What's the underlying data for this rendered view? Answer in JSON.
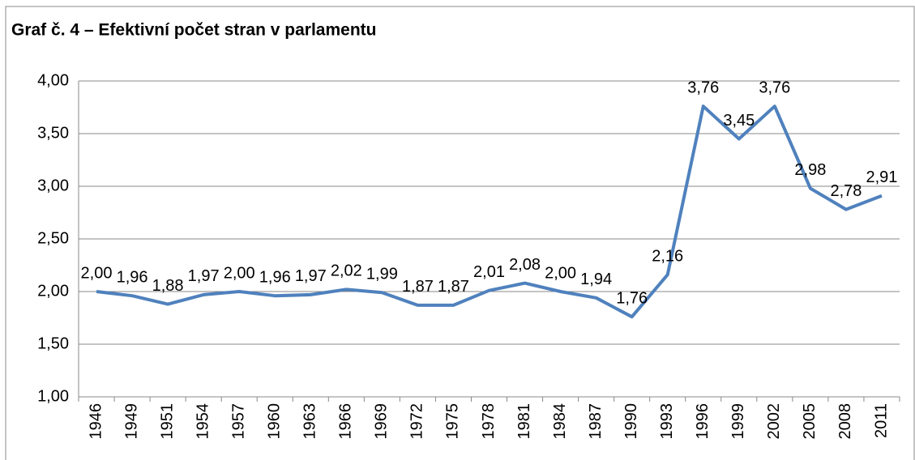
{
  "chart_data": {
    "type": "line",
    "title": "Graf č. 4 – Efektivní počet stran v parlamentu",
    "categories": [
      "1946",
      "1949",
      "1951",
      "1954",
      "1957",
      "1960",
      "1963",
      "1966",
      "1969",
      "1972",
      "1975",
      "1978",
      "1981",
      "1984",
      "1987",
      "1990",
      "1993",
      "1996",
      "1999",
      "2002",
      "2005",
      "2008",
      "2011"
    ],
    "values": [
      2.0,
      1.96,
      1.88,
      1.97,
      2.0,
      1.96,
      1.97,
      2.02,
      1.99,
      1.87,
      1.87,
      2.01,
      2.08,
      2.0,
      1.94,
      1.76,
      2.16,
      3.76,
      3.45,
      3.76,
      2.98,
      2.78,
      2.91
    ],
    "value_labels": [
      "2,00",
      "1,96",
      "1,88",
      "1,97",
      "2,00",
      "1,96",
      "1,97",
      "2,02",
      "1,99",
      "1,87",
      "1,87",
      "2,01",
      "2,08",
      "2,00",
      "1,94",
      "1,76",
      "2,16",
      "3,76",
      "3,45",
      "3,76",
      "2,98",
      "2,78",
      "2,91"
    ],
    "color": "#4f81bd",
    "ylim": [
      1,
      4
    ],
    "yticks": [
      {
        "value": 1,
        "label": "1,00"
      },
      {
        "value": 1.5,
        "label": "1,50"
      },
      {
        "value": 2,
        "label": "2,00"
      },
      {
        "value": 2.5,
        "label": "2,50"
      },
      {
        "value": 3,
        "label": "3,00"
      },
      {
        "value": 3.5,
        "label": "3,50"
      },
      {
        "value": 4,
        "label": "4,00"
      }
    ],
    "grid": true
  }
}
